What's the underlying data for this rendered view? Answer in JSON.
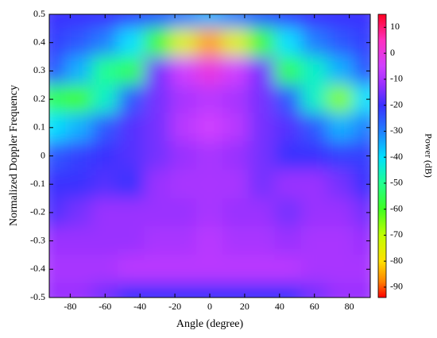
{
  "chart_data": {
    "type": "heatmap",
    "xlabel": "Angle (degree)",
    "ylabel": "Normalized Doppler Frequency",
    "colorbar_label": "Power (dB)",
    "x": [
      -90,
      -75,
      -60,
      -45,
      -30,
      -15,
      0,
      15,
      30,
      45,
      60,
      75,
      90
    ],
    "y": [
      0.5,
      0.4,
      0.3,
      0.2,
      0.1,
      0,
      -0.1,
      -0.2,
      -0.3,
      -0.4,
      -0.5
    ],
    "z": [
      [
        -20,
        -20,
        -20,
        -22,
        -25,
        -30,
        -35,
        -30,
        -25,
        -22,
        -20,
        -20,
        -20
      ],
      [
        -22,
        -25,
        -30,
        -40,
        -60,
        -75,
        -85,
        -75,
        -60,
        -40,
        -30,
        -25,
        -22
      ],
      [
        -25,
        -35,
        -50,
        -55,
        -15,
        -5,
        0,
        -5,
        -15,
        -55,
        -45,
        -35,
        -25
      ],
      [
        -55,
        -60,
        -45,
        -25,
        -15,
        -10,
        -8,
        -10,
        -15,
        -25,
        -45,
        -65,
        -40
      ],
      [
        -40,
        -35,
        -25,
        -18,
        -15,
        -8,
        -5,
        -8,
        -15,
        -18,
        -25,
        -35,
        -30
      ],
      [
        -25,
        -22,
        -20,
        -18,
        -15,
        -12,
        -10,
        -12,
        -15,
        -20,
        -20,
        -22,
        -22
      ],
      [
        -20,
        -20,
        -18,
        -20,
        -12,
        -10,
        -10,
        -10,
        -15,
        -12,
        -12,
        -15,
        -20
      ],
      [
        -18,
        -15,
        -12,
        -12,
        -12,
        -12,
        -10,
        -12,
        -12,
        -15,
        -12,
        -12,
        -15
      ],
      [
        -12,
        -12,
        -12,
        -12,
        -10,
        -10,
        -8,
        -10,
        -10,
        -12,
        -10,
        -10,
        -12
      ],
      [
        -10,
        -10,
        -10,
        -8,
        -8,
        -8,
        -8,
        -8,
        -8,
        -8,
        -10,
        -10,
        -10
      ],
      [
        -12,
        -12,
        -15,
        -20,
        -20,
        -20,
        -20,
        -20,
        -20,
        -20,
        -15,
        -12,
        -12
      ]
    ],
    "xlim": [
      -92,
      92
    ],
    "ylim": [
      -0.5,
      0.5
    ],
    "clim": [
      -94,
      15
    ],
    "xticks": [
      -80,
      -60,
      -40,
      -20,
      0,
      20,
      40,
      60,
      80
    ],
    "yticks": [
      -0.5,
      -0.4,
      -0.3,
      -0.2,
      -0.1,
      0,
      0.1,
      0.2,
      0.3,
      0.4,
      0.5
    ],
    "cticks": [
      10,
      0,
      -10,
      -20,
      -30,
      -40,
      -50,
      -60,
      -70,
      -80,
      -90
    ],
    "colormap": [
      [
        15,
        "#ff0020"
      ],
      [
        5,
        "#ff30c0"
      ],
      [
        -5,
        "#d040ff"
      ],
      [
        -12,
        "#9a30ff"
      ],
      [
        -20,
        "#3a30ff"
      ],
      [
        -30,
        "#2080ff"
      ],
      [
        -40,
        "#00e0ff"
      ],
      [
        -50,
        "#20ff90"
      ],
      [
        -60,
        "#40ff20"
      ],
      [
        -70,
        "#c0ff00"
      ],
      [
        -80,
        "#ffe000"
      ],
      [
        -88,
        "#ff8000"
      ],
      [
        -95,
        "#ff0000"
      ]
    ]
  }
}
